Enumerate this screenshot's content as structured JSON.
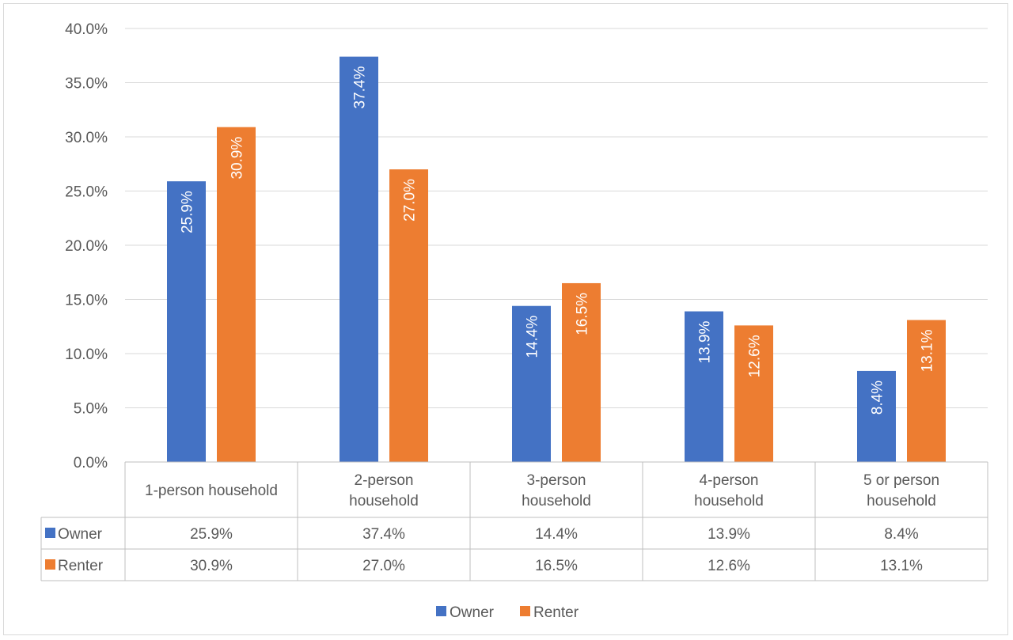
{
  "chart_data": {
    "type": "bar",
    "categories": [
      [
        "1-person household"
      ],
      [
        "2-person",
        "household"
      ],
      [
        "3-person",
        "household"
      ],
      [
        "4-person",
        "household"
      ],
      [
        "5 or person",
        "household"
      ]
    ],
    "series": [
      {
        "name": "Owner",
        "color": "#4472c4",
        "values": [
          25.9,
          37.4,
          14.4,
          13.9,
          8.4
        ],
        "labels": [
          "25.9%",
          "37.4%",
          "14.4%",
          "13.9%",
          "8.4%"
        ]
      },
      {
        "name": "Renter",
        "color": "#ed7d31",
        "values": [
          30.9,
          27.0,
          16.5,
          12.6,
          13.1
        ],
        "labels": [
          "30.9%",
          "27.0%",
          "16.5%",
          "12.6%",
          "13.1%"
        ]
      }
    ],
    "y_ticks": [
      "0.0%",
      "5.0%",
      "10.0%",
      "15.0%",
      "20.0%",
      "25.0%",
      "30.0%",
      "35.0%",
      "40.0%"
    ],
    "ylim": [
      0,
      40
    ],
    "y_step": 5,
    "grid": true,
    "legend_position": "bottom",
    "data_table": true
  }
}
